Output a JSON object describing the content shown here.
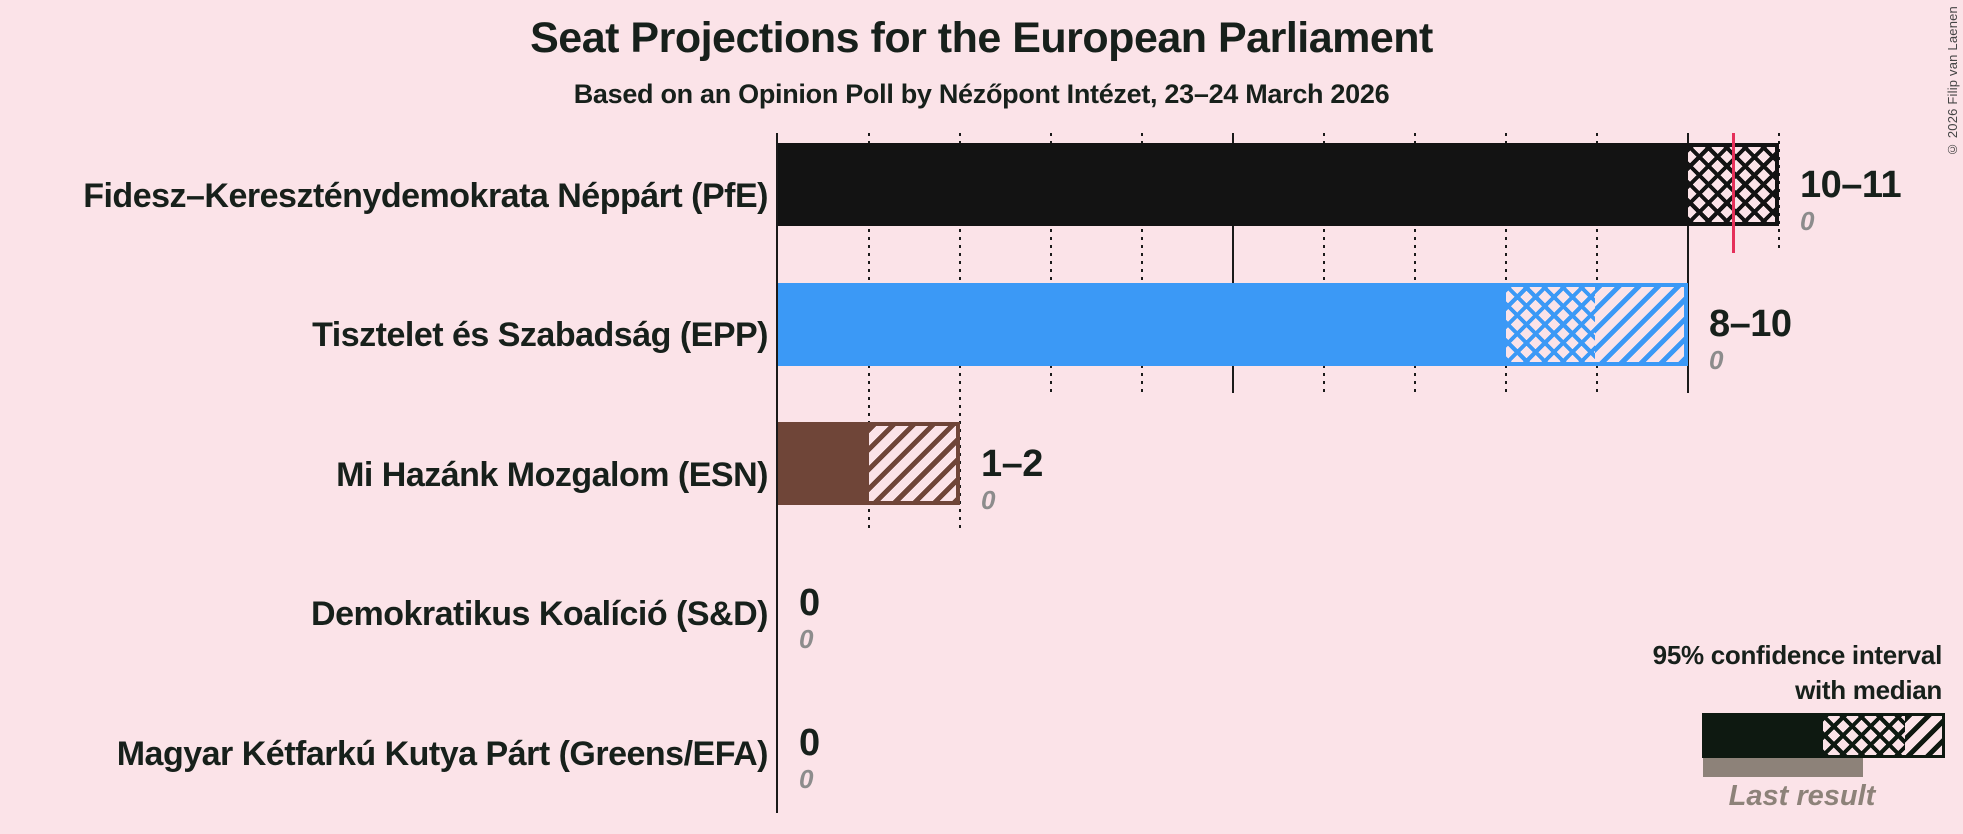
{
  "page": {
    "background": "#fbe3e8",
    "text_color": "#17201b",
    "gridline_color": "#1a1a1a"
  },
  "header": {
    "title": "Seat Projections for the European Parliament",
    "subtitle": "Based on an Opinion Poll by Nézőpont Intézet, 23–24 March 2026"
  },
  "chart_data": {
    "type": "bar",
    "orientation": "horizontal",
    "title": "Seat Projections for the European Parliament",
    "subtitle": "Based on an Opinion Poll by Nézőpont Intézet, 23–24 March 2026",
    "unit": "seats",
    "x_axis": {
      "min": 0,
      "max": 11,
      "major_gridlines": [
        5,
        10
      ],
      "minor_gridlines": [
        1,
        2,
        3,
        4,
        6,
        7,
        8,
        9,
        11
      ],
      "tick_labels_shown": false
    },
    "majority_threshold": 10.5,
    "majority_line_color": "#e5305a",
    "parties": [
      {
        "name": "Fidesz–Kereszténydemokrata Néppárt (PfE)",
        "color": "#131313",
        "ci_low": 10,
        "median": 11,
        "ci_high": 11,
        "range_label": "10–11",
        "last_result": "0"
      },
      {
        "name": "Tisztelet és Szabadság (EPP)",
        "color": "#3b99f6",
        "ci_low": 8,
        "median": 9,
        "ci_high": 10,
        "range_label": "8–10",
        "last_result": "0"
      },
      {
        "name": "Mi Hazánk Mozgalom (ESN)",
        "color": "#6f4538",
        "ci_low": 1,
        "median": 1,
        "ci_high": 2,
        "range_label": "1–2",
        "last_result": "0"
      },
      {
        "name": "Demokratikus Koalíció (S&D)",
        "color": "#17201b",
        "ci_low": 0,
        "median": 0,
        "ci_high": 0,
        "range_label": "0",
        "last_result": "0"
      },
      {
        "name": "Magyar Kétfarkú Kutya Párt (Greens/EFA)",
        "color": "#17201b",
        "ci_low": 0,
        "median": 0,
        "ci_high": 0,
        "range_label": "0",
        "last_result": "0"
      }
    ]
  },
  "legend": {
    "ci_label_line1": "95% confidence interval",
    "ci_label_line2": "with median",
    "sample_color": "#0e1911",
    "last_result_label": "Last result",
    "last_result_color": "#8d8279"
  },
  "copyright": "© 2026 Filip van Laenen"
}
